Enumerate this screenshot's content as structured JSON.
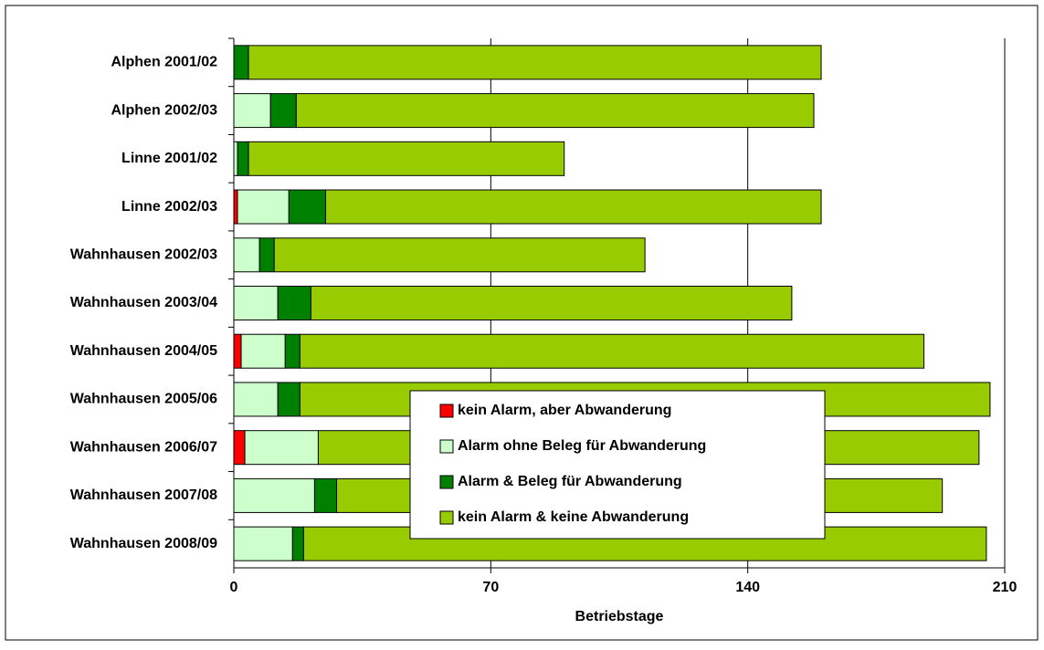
{
  "chart_data": {
    "type": "stacked_barh",
    "x_label": "Betriebstage",
    "categories": [
      "Alphen 2001/02",
      "Alphen 2002/03",
      "Linne 2001/02",
      "Linne 2002/03",
      "Wahnhausen 2002/03",
      "Wahnhausen 2003/04",
      "Wahnhausen 2004/05",
      "Wahnhausen 2005/06",
      "Wahnhausen 2006/07",
      "Wahnhausen 2007/08",
      "Wahnhausen 2008/09"
    ],
    "series": [
      {
        "name": "kein Alarm, aber Abwanderung",
        "color": "#ff0000",
        "values": [
          0,
          0,
          0,
          1,
          0,
          0,
          2,
          0,
          3,
          0,
          0
        ]
      },
      {
        "name": "Alarm ohne Beleg für Abwanderung",
        "color": "#ccffcc",
        "values": [
          0,
          10,
          1,
          14,
          7,
          12,
          12,
          12,
          20,
          22,
          16
        ]
      },
      {
        "name": "Alarm & Beleg für Abwanderung",
        "color": "#008000",
        "values": [
          4,
          7,
          3,
          10,
          4,
          9,
          4,
          6,
          0,
          6,
          3
        ]
      },
      {
        "name": "kein Alarm & keine Abwanderung",
        "color": "#99cc00",
        "values": [
          156,
          141,
          86,
          135,
          101,
          131,
          170,
          188,
          180,
          165,
          186
        ]
      }
    ],
    "xlim": [
      0,
      210
    ],
    "xticks": [
      0,
      70,
      140,
      210
    ],
    "grid": true
  }
}
